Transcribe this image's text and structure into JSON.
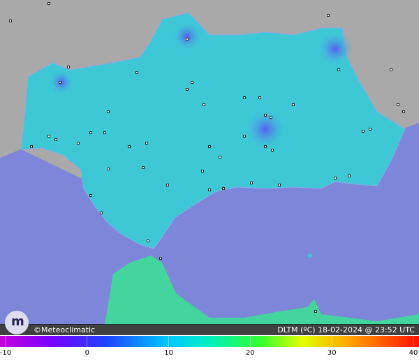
{
  "credit": "©Meteoclimatic",
  "caption": "DLTM (ºC)  18-02-2024 @ 23:52 UTC",
  "colorbar": {
    "lim": [
      -10,
      40
    ],
    "ticks": [
      -10,
      0,
      10,
      20,
      30,
      40
    ]
  }
}
